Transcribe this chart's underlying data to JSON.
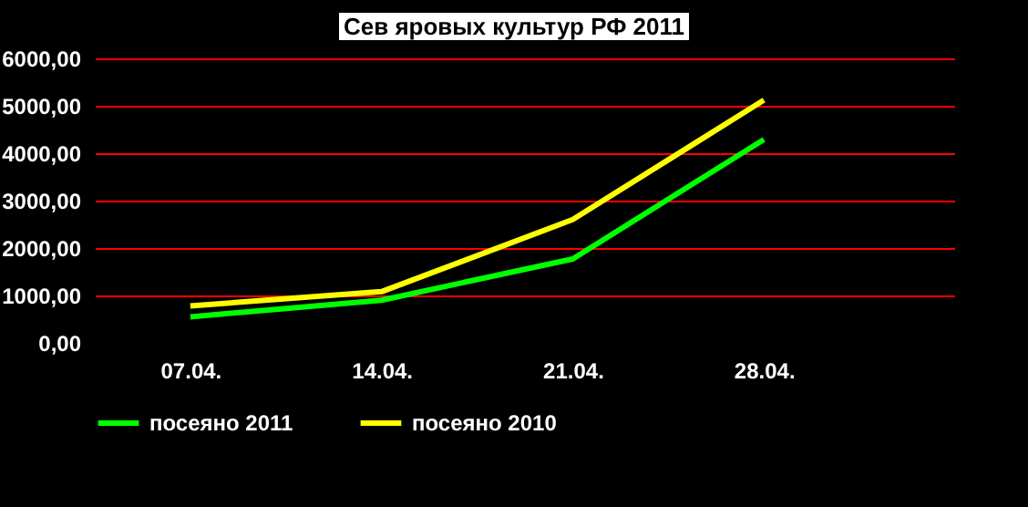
{
  "chart_data": {
    "type": "line",
    "title": "Сев яровых культур  РФ 2011",
    "categories": [
      "07.04.",
      "14.04.",
      "21.04.",
      "28.04."
    ],
    "series": [
      {
        "name": "посеяно 2011",
        "color": "#00ff00",
        "values": [
          550,
          900,
          1770,
          4290
        ]
      },
      {
        "name": "посеяно 2010",
        "color": "#ffff00",
        "values": [
          780,
          1080,
          2600,
          5120
        ]
      }
    ],
    "ylim": [
      0,
      6000
    ],
    "yticks": [
      {
        "value": 0,
        "label": "0,00"
      },
      {
        "value": 1000,
        "label": "1000,00"
      },
      {
        "value": 2000,
        "label": "2000,00"
      },
      {
        "value": 3000,
        "label": "3000,00"
      },
      {
        "value": 4000,
        "label": "4000,00"
      },
      {
        "value": 5000,
        "label": "5000,00"
      },
      {
        "value": 6000,
        "label": "6000,00"
      }
    ],
    "grid": "y",
    "legend": "bottom"
  }
}
